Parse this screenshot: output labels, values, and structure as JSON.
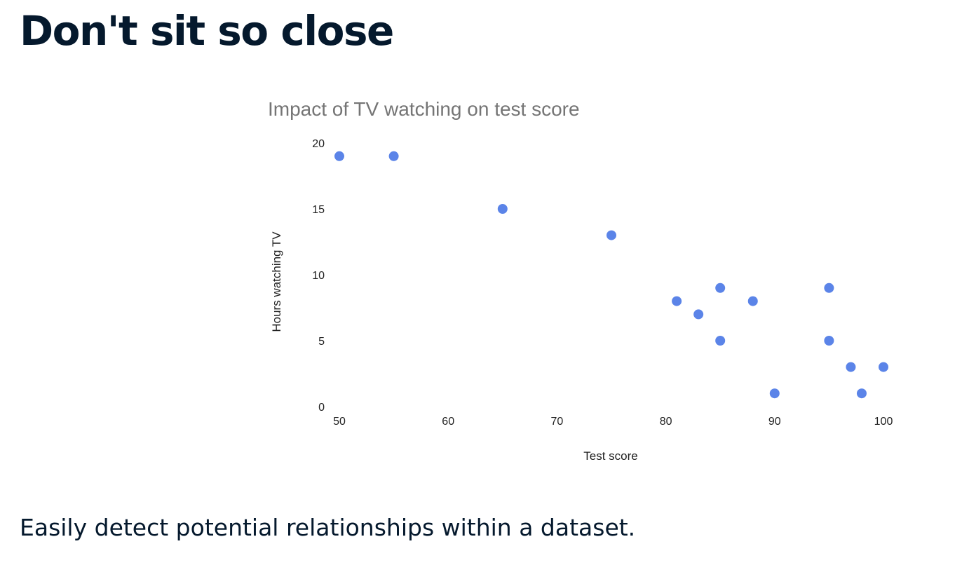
{
  "slide": {
    "title": "Don't sit so close",
    "caption": "Easily detect potential relationships within a dataset."
  },
  "chart_data": {
    "type": "scatter",
    "title": "Impact of TV watching on test score",
    "xlabel": "Test score",
    "ylabel": "Hours watching TV",
    "xlim": [
      50,
      100
    ],
    "ylim": [
      0,
      20
    ],
    "x_ticks": [
      "50",
      "60",
      "70",
      "80",
      "90",
      "100"
    ],
    "y_ticks": [
      "0",
      "5",
      "10",
      "15",
      "20"
    ],
    "grid": false,
    "point_color": "#5b84e8",
    "points": [
      {
        "x": 50,
        "y": 19
      },
      {
        "x": 55,
        "y": 19
      },
      {
        "x": 65,
        "y": 15
      },
      {
        "x": 75,
        "y": 13
      },
      {
        "x": 81,
        "y": 8
      },
      {
        "x": 83,
        "y": 7
      },
      {
        "x": 85,
        "y": 9
      },
      {
        "x": 85,
        "y": 5
      },
      {
        "x": 88,
        "y": 8
      },
      {
        "x": 90,
        "y": 1
      },
      {
        "x": 95,
        "y": 9
      },
      {
        "x": 95,
        "y": 5
      },
      {
        "x": 97,
        "y": 3
      },
      {
        "x": 98,
        "y": 1
      },
      {
        "x": 100,
        "y": 3
      }
    ]
  }
}
